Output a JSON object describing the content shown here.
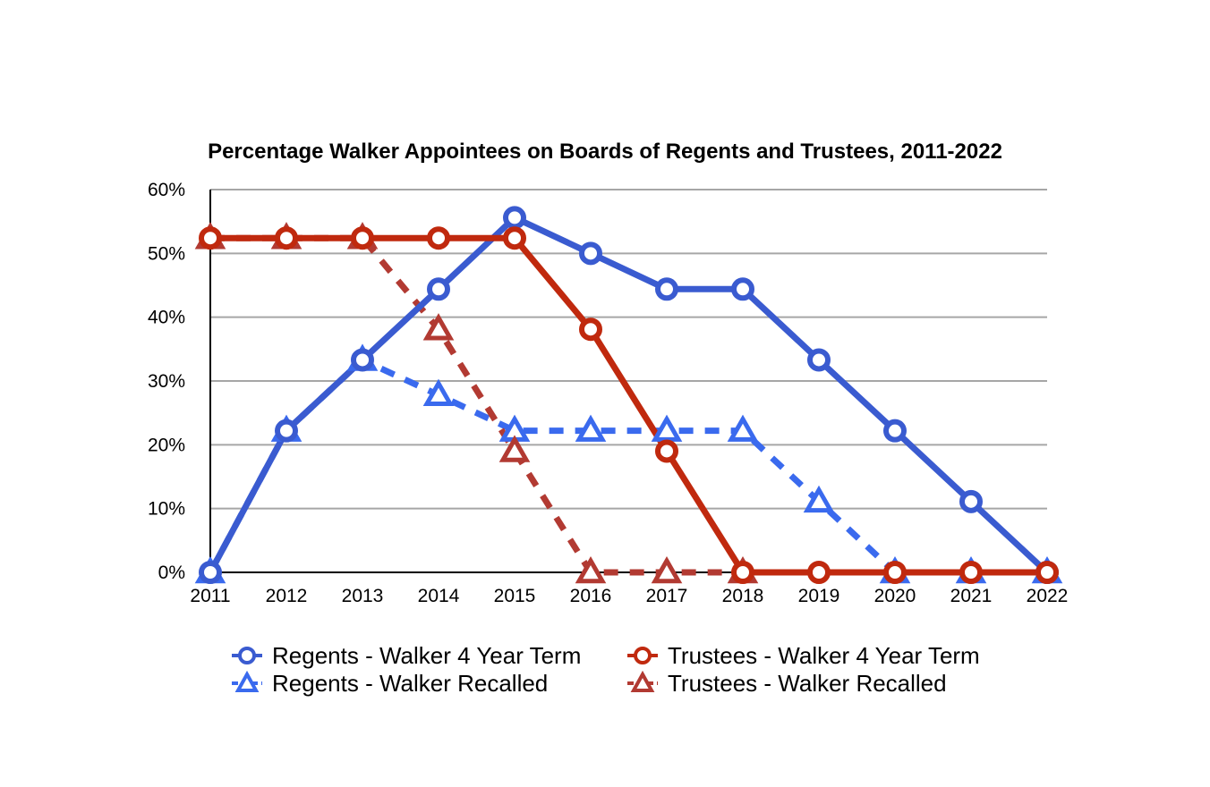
{
  "chart_data": {
    "type": "line",
    "title": "Percentage Walker Appointees on Boards of Regents and Trustees, 2011-2022",
    "x": [
      "2011",
      "2012",
      "2013",
      "2014",
      "2015",
      "2016",
      "2017",
      "2018",
      "2019",
      "2020",
      "2021",
      "2022"
    ],
    "y_ticks": [
      "0%",
      "10%",
      "20%",
      "30%",
      "40%",
      "50%",
      "60%"
    ],
    "ylim": [
      0,
      60
    ],
    "grid": true,
    "legend_position": "bottom",
    "series": [
      {
        "name": "Regents - Walker 4 Year Term",
        "color": "#3a5bd0",
        "marker": "circle",
        "line": "solid",
        "values": [
          0,
          22.2,
          33.3,
          44.4,
          55.6,
          50,
          44.4,
          44.4,
          33.3,
          22.2,
          11.1,
          0
        ]
      },
      {
        "name": "Regents - Walker Recalled",
        "color": "#3a6aee",
        "marker": "triangle",
        "line": "dashed",
        "values": [
          0,
          22.2,
          33.3,
          27.8,
          22.2,
          22.2,
          22.2,
          22.2,
          11.1,
          0,
          0,
          0
        ]
      },
      {
        "name": "Trustees - Walker 4 Year Term",
        "color": "#c0290e",
        "marker": "circle",
        "line": "solid",
        "values": [
          52.4,
          52.4,
          52.4,
          52.4,
          52.4,
          38.1,
          19,
          0,
          0,
          0,
          0,
          0
        ]
      },
      {
        "name": "Trustees - Walker Recalled",
        "color": "#b23a32",
        "marker": "triangle",
        "line": "dashed",
        "values": [
          52.4,
          52.4,
          52.4,
          38.1,
          19,
          0,
          0,
          0,
          null,
          null,
          null,
          null
        ]
      }
    ]
  }
}
